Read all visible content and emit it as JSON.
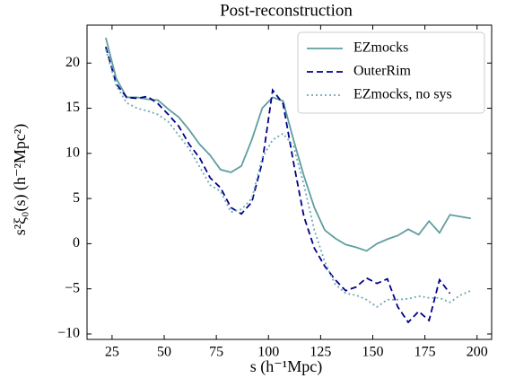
{
  "chart_data": {
    "type": "line",
    "title": "Post-reconstruction",
    "xlabel": "s (h⁻¹Mpc)",
    "ylabel": "s²ξ₀(s) (h⁻²Mpc²)",
    "x": [
      22,
      27,
      32,
      37,
      42,
      47,
      52,
      57,
      62,
      67,
      72,
      77,
      82,
      87,
      92,
      97,
      102,
      107,
      112,
      117,
      122,
      127,
      132,
      137,
      142,
      147,
      152,
      157,
      162,
      167,
      172,
      177,
      182,
      187,
      192,
      197
    ],
    "series": [
      {
        "name": "EZmocks",
        "color": "#5f9ea0",
        "style": "solid",
        "values": [
          22.8,
          18.3,
          16.2,
          16.2,
          16.0,
          15.9,
          14.9,
          14.0,
          12.6,
          11.0,
          9.8,
          8.2,
          7.9,
          8.6,
          11.5,
          15.0,
          16.2,
          15.8,
          11.5,
          7.5,
          4.0,
          1.5,
          0.6,
          -0.1,
          -0.4,
          -0.8,
          0.0,
          0.5,
          0.9,
          1.6,
          1.0,
          2.5,
          1.2,
          3.2,
          3.0,
          2.8
        ]
      },
      {
        "name": "OuterRim",
        "color": "#00008b",
        "style": "dashed",
        "values": [
          21.8,
          17.7,
          16.2,
          16.1,
          16.3,
          15.5,
          14.3,
          13.0,
          11.0,
          9.5,
          7.3,
          6.2,
          4.0,
          3.3,
          4.6,
          9.0,
          17.0,
          15.5,
          9.0,
          3.0,
          -0.5,
          -2.5,
          -4.0,
          -5.2,
          -4.8,
          -3.8,
          -4.4,
          -3.9,
          -7.0,
          -8.7,
          -7.5,
          -8.5,
          -4.0,
          -5.5,
          null,
          null
        ]
      },
      {
        "name": "EZmocks, no sys",
        "color": "#6fa8b3",
        "style": "dotted",
        "values": [
          21.5,
          17.5,
          15.6,
          15.0,
          14.7,
          14.3,
          13.5,
          12.0,
          10.5,
          8.5,
          6.5,
          5.8,
          3.5,
          3.8,
          5.0,
          9.5,
          11.5,
          12.2,
          10.8,
          6.5,
          1.5,
          -2.0,
          -4.5,
          -5.5,
          -5.7,
          -6.2,
          -7.0,
          -6.2,
          -6.2,
          -6.1,
          -5.8,
          -6.0,
          -6.0,
          -6.5,
          -5.7,
          -5.2
        ]
      }
    ],
    "xlim": [
      13,
      207
    ],
    "ylim": [
      -10.6,
      24.2
    ],
    "xticks": [
      25,
      50,
      75,
      100,
      125,
      150,
      175,
      200
    ],
    "yticks": [
      {
        "value": -10,
        "label": "−10"
      },
      {
        "value": -5,
        "label": "−5"
      },
      0,
      5,
      10,
      15,
      20
    ],
    "legend": "upper right"
  }
}
